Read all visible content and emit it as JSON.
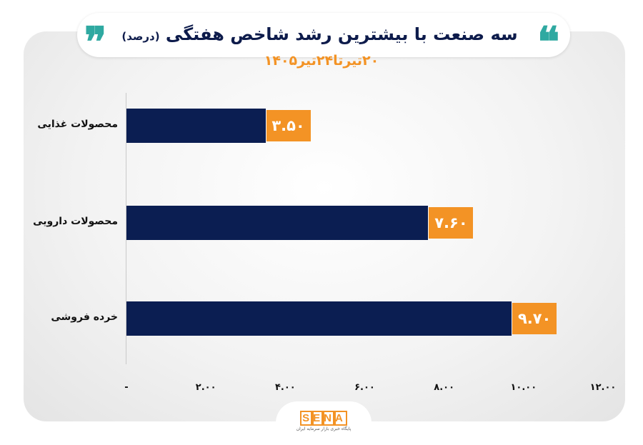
{
  "header": {
    "title": "سه صنعت با بیشترین رشد شاخص هفتگی",
    "title_unit": "(درصد)",
    "subtitle": "۲۰تیرتا۲۴تیر۱۴۰۵",
    "quote_open": "❞",
    "quote_close": "❝"
  },
  "chart_data": {
    "type": "bar",
    "orientation": "horizontal",
    "categories": [
      "محصولات غذایی",
      "محصولات دارویی",
      "خرده فروشی"
    ],
    "values": [
      3.5,
      7.6,
      9.7
    ],
    "value_labels": [
      "۳.۵۰",
      "۷.۶۰",
      "۹.۷۰"
    ],
    "xlim": [
      0,
      12
    ],
    "x_ticks": [
      {
        "value": 0,
        "label": "-"
      },
      {
        "value": 2,
        "label": "۲.۰۰"
      },
      {
        "value": 4,
        "label": "۴.۰۰"
      },
      {
        "value": 6,
        "label": "۶.۰۰"
      },
      {
        "value": 8,
        "label": "۸.۰۰"
      },
      {
        "value": 10,
        "label": "۱۰.۰۰"
      },
      {
        "value": 12,
        "label": "۱۲.۰۰"
      }
    ],
    "grid": false,
    "colors": {
      "bar": "#0b1e52",
      "label_bg": "#f39325",
      "label_text": "#ffffff"
    }
  },
  "footer": {
    "logo_letters": [
      "S",
      "E",
      "N",
      "A"
    ],
    "logo_tagline": "پایگاه خبری بازار سرمایه ایران"
  }
}
